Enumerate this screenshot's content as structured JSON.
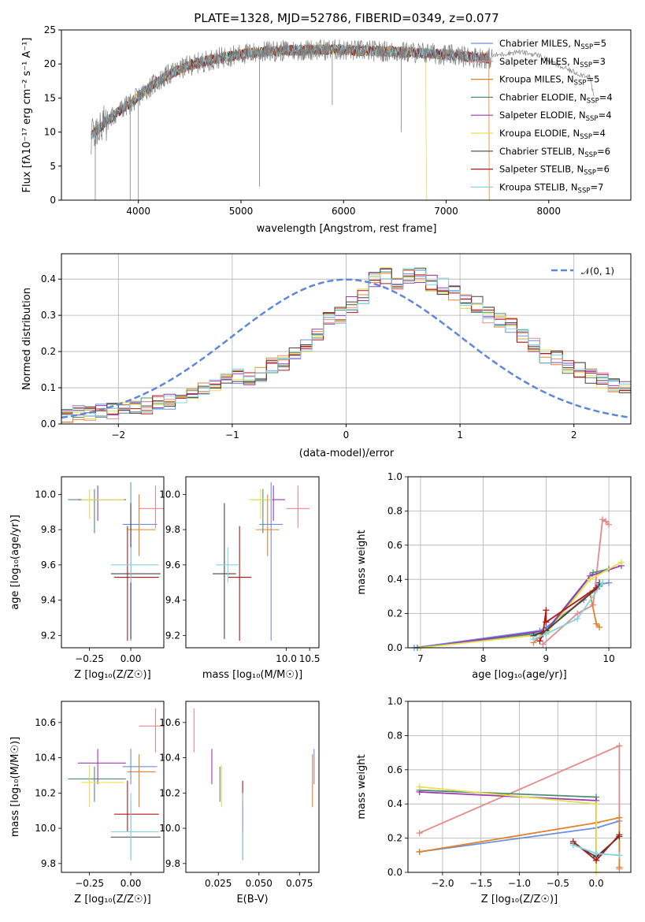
{
  "chart_data": [
    {
      "type": "line",
      "title": "PLATE=1328, MJD=52786, FIBERID=0349, z=0.077",
      "xlabel": "wavelength [Angstrom, rest frame]",
      "ylabel": "Flux [fλ10⁻¹⁷ erg cm⁻² s⁻¹ A⁻¹]",
      "xlim": [
        3250,
        8800
      ],
      "ylim": [
        0,
        25
      ],
      "xticks": [
        "4000",
        "5000",
        "6000",
        "7000",
        "8000"
      ],
      "yticks": [
        "0",
        "5",
        "10",
        "15",
        "20",
        "25"
      ],
      "legend_position": "right",
      "series": [
        {
          "name": "Chabrier MILES, N_SSP=5",
          "color": "#6d8fdd"
        },
        {
          "name": "Salpeter MILES, N_SSP=3",
          "color": "#e48a8a"
        },
        {
          "name": "Kroupa MILES, N_SSP=5",
          "color": "#e0822e"
        },
        {
          "name": "Chabrier ELODIE, N_SSP=4",
          "color": "#4f8f6f"
        },
        {
          "name": "Salpeter ELODIE, N_SSP=4",
          "color": "#9b3ab4"
        },
        {
          "name": "Kroupa ELODIE, N_SSP=4",
          "color": "#e6e04c"
        },
        {
          "name": "Chabrier STELIB, N_SSP=6",
          "color": "#444444"
        },
        {
          "name": "Salpeter STELIB, N_SSP=6",
          "color": "#b01818"
        },
        {
          "name": "Kroupa STELIB, N_SSP=7",
          "color": "#85d4de"
        }
      ],
      "observed": {
        "color": "#808080"
      },
      "continuum": {
        "x": [
          3540,
          3650,
          3800,
          3950,
          4100,
          4300,
          4500,
          4700,
          4900,
          5100,
          5300,
          5500,
          5700,
          5900,
          6100,
          6300,
          6500,
          6700,
          6900,
          7100,
          7300,
          7450
        ],
        "y": [
          9.5,
          11,
          13,
          14.5,
          16.5,
          18.5,
          19.8,
          20.6,
          21.2,
          21.6,
          21.9,
          22.0,
          22.1,
          22.1,
          22.0,
          21.9,
          21.8,
          21.7,
          21.5,
          21.2,
          21.0,
          20.8
        ]
      },
      "observed_extension": {
        "x": [
          7450,
          7700,
          7900,
          8100,
          8300,
          8400,
          8440
        ],
        "y": [
          21.2,
          21.8,
          21.3,
          19.7,
          18.5,
          18.2,
          15
        ]
      }
    },
    {
      "type": "histogram",
      "xlabel": "(data-model)/error",
      "ylabel": "Normed distribution",
      "xlim": [
        -2.5,
        2.5
      ],
      "ylim": [
        0,
        0.47
      ],
      "xticks": [
        "−2",
        "−1",
        "0",
        "1",
        "2"
      ],
      "yticks": [
        "0.0",
        "0.1",
        "0.2",
        "0.3",
        "0.4"
      ],
      "legend": "𝒩(0, 1)",
      "reference_curve": {
        "name": "N(0,1)",
        "mean": 0,
        "sd": 1,
        "color": "#5e88d6"
      },
      "bin_width": 0.1,
      "bins_start": -2.5,
      "base_heights": [
        0.02,
        0.03,
        0.03,
        0.04,
        0.035,
        0.04,
        0.05,
        0.05,
        0.06,
        0.06,
        0.07,
        0.08,
        0.1,
        0.11,
        0.12,
        0.13,
        0.12,
        0.14,
        0.16,
        0.17,
        0.19,
        0.21,
        0.25,
        0.29,
        0.3,
        0.33,
        0.35,
        0.4,
        0.41,
        0.39,
        0.41,
        0.41,
        0.39,
        0.38,
        0.36,
        0.34,
        0.33,
        0.3,
        0.29,
        0.27,
        0.24,
        0.22,
        0.19,
        0.18,
        0.16,
        0.15,
        0.13,
        0.12,
        0.11,
        0.1
      ]
    },
    {
      "type": "errorbar",
      "xlabel": "Z [log₁₀(Z/Z☉)]",
      "ylabel": "age  [log₁₀(age/yr)]",
      "xlim": [
        -0.42,
        0.2
      ],
      "ylim": [
        9.13,
        10.1
      ],
      "xticks": [
        "−0.25",
        "0.00"
      ],
      "yticks": [
        "9.2",
        "9.4",
        "9.6",
        "9.8",
        "10.0"
      ]
    },
    {
      "type": "errorbar",
      "xlabel": "mass [log₁₀(M/M☉)]",
      "xlim": [
        7.85,
        10.7
      ],
      "ylim": [
        9.13,
        10.1
      ],
      "xticks": [
        "10.0",
        "10.5"
      ],
      "yticks": [
        "9.2",
        "9.4",
        "9.6",
        "9.8",
        "10.0"
      ]
    },
    {
      "type": "line",
      "xlabel": "age  [log₁₀(age/yr)]",
      "ylabel": "mass weight",
      "xlim": [
        6.8,
        10.35
      ],
      "ylim": [
        0,
        1.0
      ],
      "xticks": [
        "7",
        "8",
        "9",
        "10"
      ],
      "yticks": [
        "0.0",
        "0.2",
        "0.4",
        "0.6",
        "0.8",
        "1.0"
      ]
    },
    {
      "type": "errorbar",
      "xlabel": "Z [log₁₀(Z/Z☉)]",
      "ylabel": "mass [log₁₀(M/M☉)]",
      "xlim": [
        -0.42,
        0.2
      ],
      "ylim": [
        9.75,
        10.72
      ],
      "xticks": [
        "−0.25",
        "0.00"
      ],
      "yticks": [
        "9.8",
        "10.0",
        "10.2",
        "10.4",
        "10.6"
      ]
    },
    {
      "type": "errorbar",
      "xlabel": "E(B-V)",
      "xlim": [
        0.005,
        0.087
      ],
      "ylim": [
        9.75,
        10.72
      ],
      "xticks": [
        "0.025",
        "0.050",
        "0.075"
      ],
      "yticks": [
        "9.8",
        "10.0",
        "10.2",
        "10.4",
        "10.6"
      ]
    },
    {
      "type": "line",
      "xlabel": "Z [log₁₀(Z/Z☉)]",
      "ylabel": "mass weight",
      "xlim": [
        -2.45,
        0.45
      ],
      "ylim": [
        0,
        1.0
      ],
      "xticks": [
        "−2.0",
        "−1.5",
        "−1.0",
        "−0.5",
        "0.0"
      ],
      "yticks": [
        "0.0",
        "0.2",
        "0.4",
        "0.6",
        "0.8",
        "1.0"
      ]
    }
  ],
  "fits": [
    {
      "name": "Chabrier MILES",
      "color": "#6d8fdd",
      "age": 9.83,
      "age_lo": 9.17,
      "age_hi": 10.07,
      "Z": 0.0,
      "Z_lo": -0.05,
      "Z_hi": 0.16,
      "mass": 10.35,
      "mass_lo": 10.25,
      "mass_hi": 10.45,
      "ebv": 0.084,
      "sv_age": [
        6.9,
        8.9,
        9.0,
        9.6,
        9.85,
        10.0
      ],
      "sv_w": [
        0.0,
        0.1,
        0.12,
        0.28,
        0.37,
        0.38
      ],
      "sv_Z": [
        -2.3,
        0.0,
        0.3
      ],
      "sv_Zw": [
        0.12,
        0.26,
        0.3
      ]
    },
    {
      "name": "Salpeter MILES",
      "color": "#e48a8a",
      "age": 9.92,
      "age_lo": 9.81,
      "age_hi": 10.05,
      "Z": 0.15,
      "Z_lo": 0.05,
      "Z_hi": 0.2,
      "mass": 10.58,
      "mass_lo": 10.43,
      "mass_hi": 10.68,
      "ebv": 0.01,
      "sv_age": [
        8.95,
        9.5,
        9.75,
        9.9,
        9.95,
        10.0
      ],
      "sv_w": [
        0.02,
        0.2,
        0.25,
        0.75,
        0.74,
        0.72
      ],
      "sv_Z": [
        -2.3,
        0.3,
        0.3
      ],
      "sv_Zw": [
        0.23,
        0.74,
        0.02
      ]
    },
    {
      "name": "Kroupa MILES",
      "color": "#e0822e",
      "age": 9.8,
      "age_lo": 9.65,
      "age_hi": 10.0,
      "Z": 0.05,
      "Z_lo": -0.02,
      "Z_hi": 0.15,
      "mass": 10.32,
      "mass_lo": 10.12,
      "mass_hi": 10.42,
      "ebv": 0.083,
      "sv_age": [
        8.8,
        9.0,
        9.7,
        9.8,
        9.85
      ],
      "sv_w": [
        0.03,
        0.1,
        0.32,
        0.14,
        0.12
      ],
      "sv_Z": [
        -2.3,
        0.0,
        0.3,
        0.3
      ],
      "sv_Zw": [
        0.12,
        0.29,
        0.32,
        0.03
      ]
    },
    {
      "name": "Chabrier ELODIE",
      "color": "#4f8f6f",
      "age": 9.97,
      "age_lo": 9.78,
      "age_hi": 10.03,
      "Z": -0.22,
      "Z_lo": -0.38,
      "Z_hi": -0.03,
      "mass": 10.28,
      "mass_lo": 10.15,
      "mass_hi": 10.35,
      "ebv": 0.026,
      "sv_age": [
        6.95,
        9.0,
        9.75,
        10.0
      ],
      "sv_w": [
        0.0,
        0.09,
        0.44,
        0.46
      ],
      "sv_Z": [
        -2.3,
        0.0,
        0.0
      ],
      "sv_Zw": [
        0.48,
        0.44,
        0.09
      ]
    },
    {
      "name": "Salpeter ELODIE",
      "color": "#9b3ab4",
      "age": 9.97,
      "age_lo": 9.85,
      "age_hi": 10.05,
      "Z": -0.2,
      "Z_lo": -0.32,
      "Z_hi": -0.03,
      "mass": 10.37,
      "mass_lo": 10.25,
      "mass_hi": 10.45,
      "ebv": 0.021,
      "sv_age": [
        7.0,
        9.0,
        9.7,
        10.2
      ],
      "sv_w": [
        0.0,
        0.1,
        0.42,
        0.48
      ],
      "sv_Z": [
        -2.3,
        0.0,
        0.0
      ],
      "sv_Zw": [
        0.47,
        0.42,
        0.1
      ]
    },
    {
      "name": "Kroupa ELODIE",
      "color": "#e6e04c",
      "age": 9.97,
      "age_lo": 9.86,
      "age_hi": 10.03,
      "Z": -0.25,
      "Z_lo": -0.3,
      "Z_hi": -0.04,
      "mass": 10.26,
      "mass_lo": 10.12,
      "mass_hi": 10.36,
      "ebv": 0.027,
      "sv_age": [
        7.0,
        9.0,
        9.7,
        10.2
      ],
      "sv_w": [
        0.0,
        0.08,
        0.4,
        0.5
      ],
      "sv_Z": [
        -2.3,
        0.0,
        0.0
      ],
      "sv_Zw": [
        0.5,
        0.4,
        0.0
      ]
    },
    {
      "name": "Chabrier STELIB",
      "color": "#444444",
      "age": 9.55,
      "age_lo": 9.18,
      "age_hi": 9.95,
      "Z": 0.0,
      "Z_lo": -0.12,
      "Z_hi": 0.18,
      "mass": 9.95,
      "mass_lo": 9.82,
      "mass_hi": 10.15,
      "ebv": 0.04,
      "sv_age": [
        8.8,
        9.0,
        9.85,
        9.85
      ],
      "sv_w": [
        0.07,
        0.1,
        0.36,
        0.38
      ],
      "sv_Z": [
        -0.3,
        0.0,
        0.3
      ],
      "sv_Zw": [
        0.17,
        0.09,
        0.21
      ]
    },
    {
      "name": "Salpeter STELIB",
      "color": "#b01818",
      "age": 9.53,
      "age_lo": 9.17,
      "age_hi": 9.82,
      "Z": -0.02,
      "Z_lo": -0.1,
      "Z_hi": 0.17,
      "mass": 10.08,
      "mass_lo": 9.98,
      "mass_hi": 10.27,
      "ebv": 0.04,
      "sv_age": [
        8.9,
        8.95,
        9.0,
        9.0,
        9.8
      ],
      "sv_w": [
        0.04,
        0.08,
        0.22,
        0.15,
        0.35
      ],
      "sv_Z": [
        -0.3,
        0.0,
        0.3
      ],
      "sv_Zw": [
        0.18,
        0.07,
        0.22
      ]
    },
    {
      "name": "Kroupa STELIB",
      "color": "#85d4de",
      "age": 9.6,
      "age_lo": 9.5,
      "age_hi": 9.7,
      "Z": 0.0,
      "Z_lo": -0.12,
      "Z_hi": 0.17,
      "mass": 9.98,
      "mass_lo": 9.82,
      "mass_hi": 10.2,
      "ebv": 0.04,
      "sv_age": [
        8.8,
        9.0,
        9.5,
        9.9
      ],
      "sv_w": [
        0.05,
        0.08,
        0.17,
        0.38
      ],
      "sv_Z": [
        -0.3,
        0.0,
        0.3
      ],
      "sv_Zw": [
        0.16,
        0.11,
        0.1
      ]
    }
  ]
}
